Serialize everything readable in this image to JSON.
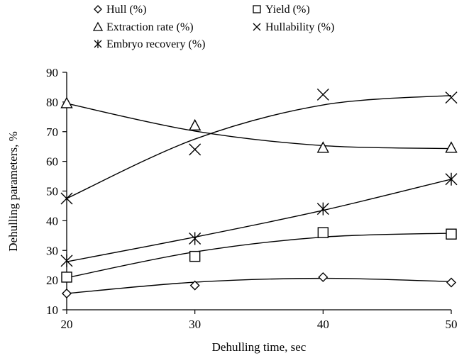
{
  "chart_data": {
    "type": "line",
    "xlabel": "Dehulling time, sec",
    "ylabel": "Dehulling parameters, %",
    "xlim": [
      20,
      50
    ],
    "ylim": [
      10,
      90
    ],
    "x_ticks": [
      20,
      30,
      40,
      50
    ],
    "y_ticks": [
      10,
      20,
      30,
      40,
      50,
      60,
      70,
      80,
      90
    ],
    "grid": false,
    "legend_position": "top",
    "x": [
      20,
      30,
      40,
      50
    ],
    "series": [
      {
        "name": "Hull (%)",
        "marker": "diamond",
        "values": [
          15.5,
          18.2,
          21.0,
          19.2
        ],
        "fit": [
          15.5,
          19.3,
          20.6,
          19.5
        ]
      },
      {
        "name": "Yield (%)",
        "marker": "square",
        "values": [
          21.0,
          28.0,
          36.0,
          35.5
        ],
        "fit": [
          20.8,
          29.5,
          34.5,
          35.8
        ]
      },
      {
        "name": "Extraction rate (%)",
        "marker": "triangle",
        "values": [
          79.5,
          72.0,
          64.5,
          64.5
        ],
        "fit": [
          79.5,
          70.2,
          65.3,
          64.3
        ]
      },
      {
        "name": "Hullability (%)",
        "marker": "x",
        "values": [
          47.5,
          64.0,
          82.5,
          81.5
        ],
        "fit": [
          47.5,
          67.5,
          79.0,
          82.2
        ]
      },
      {
        "name": "Embryo recovery (%)",
        "marker": "asterisk",
        "values": [
          26.5,
          34.0,
          44.0,
          54.0
        ],
        "fit": [
          26.2,
          34.5,
          43.5,
          54.0
        ]
      }
    ]
  }
}
